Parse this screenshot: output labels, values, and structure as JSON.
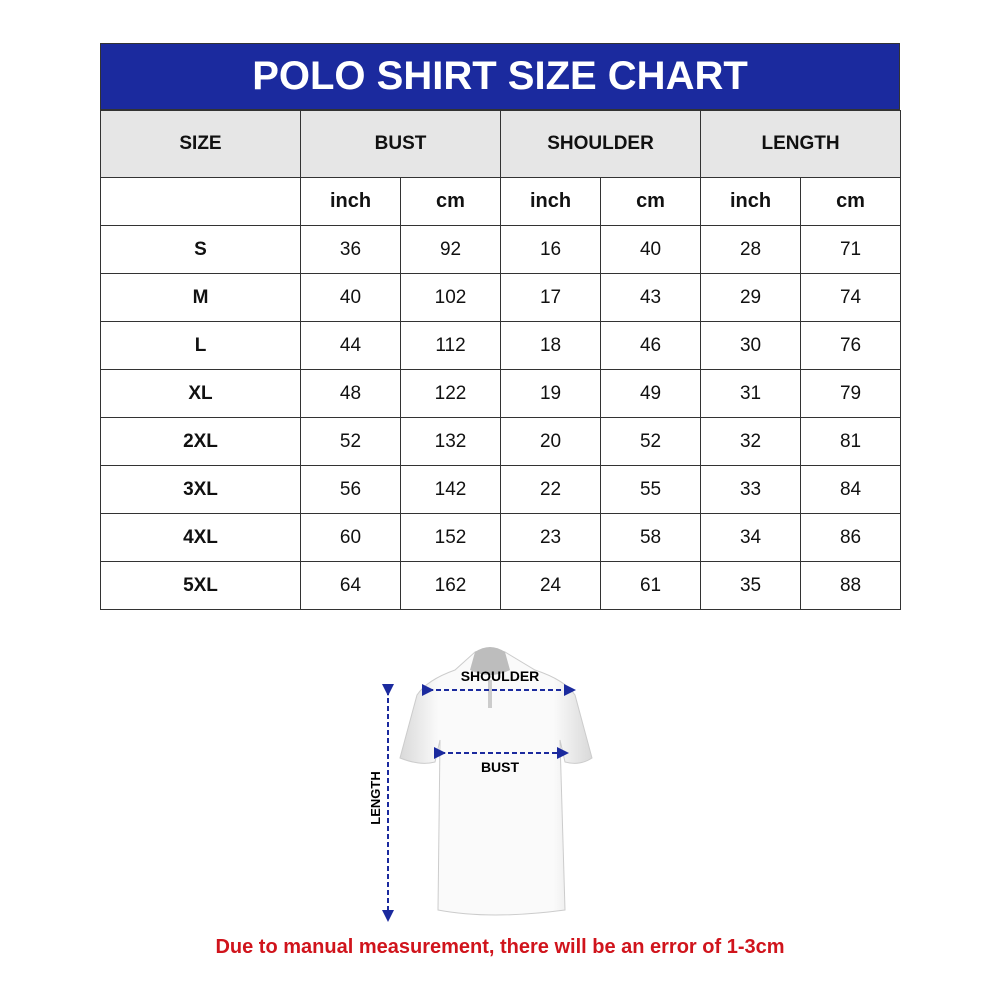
{
  "title": "POLO SHIRT SIZE CHART",
  "headers": {
    "size": "SIZE",
    "bust": "BUST",
    "shoulder": "SHOULDER",
    "length": "LENGTH"
  },
  "units": {
    "inch": "inch",
    "cm": "cm"
  },
  "rows": [
    {
      "size": "S",
      "bust_in": "36",
      "bust_cm": "92",
      "sh_in": "16",
      "sh_cm": "40",
      "len_in": "28",
      "len_cm": "71"
    },
    {
      "size": "M",
      "bust_in": "40",
      "bust_cm": "102",
      "sh_in": "17",
      "sh_cm": "43",
      "len_in": "29",
      "len_cm": "74"
    },
    {
      "size": "L",
      "bust_in": "44",
      "bust_cm": "112",
      "sh_in": "18",
      "sh_cm": "46",
      "len_in": "30",
      "len_cm": "76"
    },
    {
      "size": "XL",
      "bust_in": "48",
      "bust_cm": "122",
      "sh_in": "19",
      "sh_cm": "49",
      "len_in": "31",
      "len_cm": "79"
    },
    {
      "size": "2XL",
      "bust_in": "52",
      "bust_cm": "132",
      "sh_in": "20",
      "sh_cm": "52",
      "len_in": "32",
      "len_cm": "81"
    },
    {
      "size": "3XL",
      "bust_in": "56",
      "bust_cm": "142",
      "sh_in": "22",
      "sh_cm": "55",
      "len_in": "33",
      "len_cm": "84"
    },
    {
      "size": "4XL",
      "bust_in": "60",
      "bust_cm": "152",
      "sh_in": "23",
      "sh_cm": "58",
      "len_in": "34",
      "len_cm": "86"
    },
    {
      "size": "5XL",
      "bust_in": "64",
      "bust_cm": "162",
      "sh_in": "24",
      "sh_cm": "61",
      "len_in": "35",
      "len_cm": "88"
    }
  ],
  "diagram": {
    "shoulder": "SHOULDER",
    "bust": "BUST",
    "length": "LENGTH"
  },
  "note": "Due to manual measurement, there will be an error of 1-3cm",
  "colors": {
    "title_bg": "#1b2a9e",
    "header_bg": "#e6e6e6",
    "arrow": "#1b2a9e",
    "note": "#d0141c"
  }
}
